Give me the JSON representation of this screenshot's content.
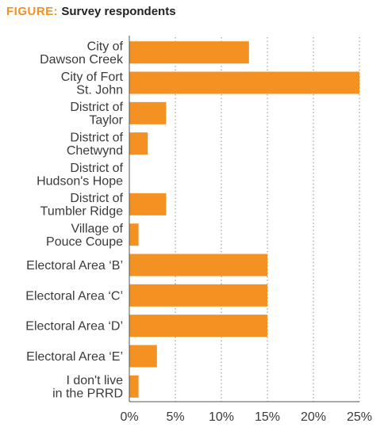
{
  "title": {
    "prefix": "FIGURE",
    "separator": ":",
    "text": "Survey respondents"
  },
  "colors": {
    "bar": "#f39122",
    "accent": "#f39122",
    "text": "#3a3a3a",
    "grid": "#8a8a8a"
  },
  "chart_data": {
    "type": "bar",
    "orientation": "horizontal",
    "title": "Survey respondents",
    "categories": [
      [
        "City of",
        "Dawson Creek"
      ],
      [
        "City of Fort",
        "St. John"
      ],
      [
        "District of",
        "Taylor"
      ],
      [
        "District of",
        "Chetwynd"
      ],
      [
        "District of",
        "Hudson's Hope"
      ],
      [
        "District of",
        "Tumbler Ridge"
      ],
      [
        "Village of",
        "Pouce Coupe"
      ],
      [
        "Electoral Area ‘B’"
      ],
      [
        "Electoral Area ‘C’"
      ],
      [
        "Electoral Area ‘D’"
      ],
      [
        "Electoral Area ‘E’"
      ],
      [
        "I don't live",
        "in the PRRD"
      ]
    ],
    "values": [
      13,
      25,
      4,
      2,
      0,
      4,
      1,
      15,
      15,
      15,
      3,
      1
    ],
    "xlim": [
      0,
      25
    ],
    "xticks": [
      0,
      5,
      10,
      15,
      20,
      25
    ],
    "xtick_labels": [
      "0%",
      "5%",
      "10%",
      "15%",
      "20%",
      "25%"
    ],
    "grid": "vertical dotted",
    "xlabel": "",
    "ylabel": ""
  }
}
